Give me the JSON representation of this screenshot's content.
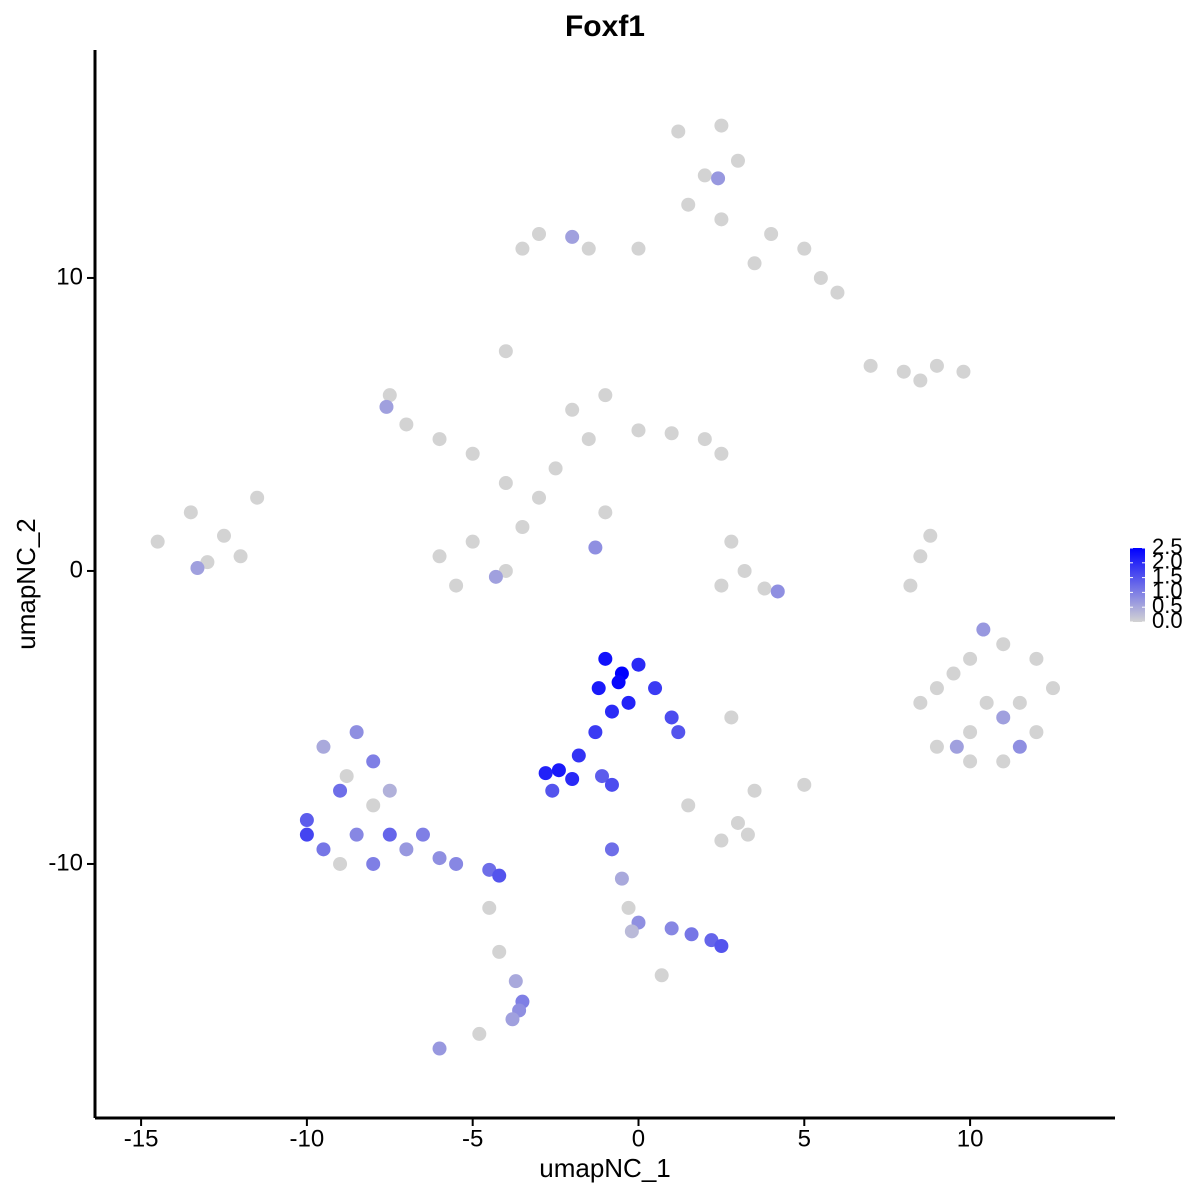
{
  "chart_data": {
    "type": "scatter",
    "title": "Foxf1",
    "x_label": "umapNC_1",
    "y_label": "umapNC_2",
    "xlim": [
      -16.39,
      14.37
    ],
    "ylim": [
      -18.67,
      17.78
    ],
    "xticks": [
      -15,
      -10,
      -5,
      0,
      5,
      10
    ],
    "yticks": [
      -10,
      0,
      10
    ],
    "color_low": "#d3d3d3",
    "color_high": "#0000ff",
    "clim": [
      0,
      2.5
    ],
    "colorbar_ticks": [
      {
        "value": 0,
        "label": "0.0"
      },
      {
        "value": 0.5,
        "label": "0.5"
      },
      {
        "value": 1,
        "label": "1.0"
      },
      {
        "value": 1.5,
        "label": "1.5"
      },
      {
        "value": 2,
        "label": "2.0"
      },
      {
        "value": 2.5,
        "label": "2.5"
      }
    ],
    "x": [
      1.2,
      2.5,
      3,
      2,
      1.5,
      2.5,
      4,
      5,
      5.5,
      3.5,
      -3,
      -1.5,
      0,
      -3.5,
      6,
      2.4,
      -2,
      7,
      8,
      9,
      9.8,
      8.5,
      -7.5,
      -7,
      -6,
      -5,
      -4,
      -4,
      -3,
      -5,
      -6,
      -5.5,
      -4,
      -3.5,
      -2,
      -1,
      -1.5,
      0,
      1,
      2,
      2.5,
      -2.5,
      -1,
      -1.3,
      -7.6,
      -4.3,
      -14.5,
      -13.5,
      -12.5,
      -12,
      -11.5,
      -13,
      -13.3,
      2.8,
      3.2,
      2.5,
      3.8,
      4.2,
      9,
      10,
      11,
      12,
      12.5,
      12,
      11,
      10,
      9,
      8.5,
      10.5,
      11.5,
      10,
      9.5,
      10.4,
      11,
      11.5,
      9.6,
      8.2,
      8.5,
      8.8,
      3,
      3.3,
      2.5,
      5,
      3.5,
      2.8,
      1.5,
      -1,
      -0.5,
      0,
      -1.2,
      -0.3,
      0.5,
      1,
      1.2,
      -0.8,
      -0.6,
      -1.3,
      -1.8,
      -2.4,
      -2.8,
      -2,
      -2.6,
      -1.1,
      -0.8,
      -9.5,
      -8.5,
      -8,
      -9,
      -10,
      -9.5,
      -8.5,
      -8,
      -7.5,
      -7,
      -6.5,
      -6,
      -5.5,
      -4.5,
      -4.2,
      -8.8,
      -7.5,
      -9,
      -10,
      -8,
      -4.5,
      -4.2,
      -3.7,
      -3.5,
      -3.6,
      -3.8,
      -6,
      -4.8,
      -0.8,
      -0.5,
      -0.3,
      0,
      1,
      1.6,
      2.2,
      2.5,
      0.7,
      -0.2
    ],
    "y": [
      15,
      15.2,
      14,
      13.5,
      12.5,
      12,
      11.5,
      11,
      10,
      10.5,
      11.5,
      11,
      11,
      11,
      9.5,
      13.4,
      11.4,
      7,
      6.8,
      7,
      6.8,
      6.5,
      6,
      5,
      4.5,
      4,
      7.5,
      3,
      2.5,
      1,
      0.5,
      -0.5,
      0,
      1.5,
      5.5,
      6,
      4.5,
      4.8,
      4.7,
      4.5,
      4,
      3.5,
      2,
      0.8,
      5.6,
      -0.2,
      1,
      2,
      1.2,
      0.5,
      2.5,
      0.3,
      0.1,
      1,
      0,
      -0.5,
      -0.6,
      -0.7,
      -4,
      -3,
      -2.5,
      -3,
      -4,
      -5.5,
      -6.5,
      -6.5,
      -6,
      -4.5,
      -4.5,
      -4.5,
      -5.5,
      -3.5,
      -2,
      -5,
      -6,
      -6,
      -0.5,
      0.5,
      1.2,
      -8.6,
      -9,
      -9.2,
      -7.3,
      -7.5,
      -5,
      -8,
      -3,
      -3.5,
      -3.2,
      -4,
      -4.5,
      -4,
      -5,
      -5.5,
      -4.8,
      -3.8,
      -5.5,
      -6.3,
      -6.8,
      -6.9,
      -7.1,
      -7.5,
      -7,
      -7.3,
      -6,
      -5.5,
      -6.5,
      -7.5,
      -8.5,
      -9.5,
      -9,
      -8,
      -9,
      -9.5,
      -9,
      -9.8,
      -10,
      -10.2,
      -10.4,
      -7,
      -7.5,
      -10,
      -9,
      -10,
      -11.5,
      -13,
      -14,
      -14.7,
      -15,
      -15.3,
      -16.3,
      -15.8,
      -9.5,
      -10.5,
      -11.5,
      -12,
      -12.2,
      -12.4,
      -12.6,
      -12.8,
      -13.8,
      -12.3
    ],
    "color_values": [
      0,
      0,
      0,
      0,
      0,
      0,
      0,
      0,
      0,
      0,
      0,
      0,
      0,
      0,
      0,
      0.7,
      0.6,
      0,
      0,
      0,
      0,
      0,
      0,
      0,
      0,
      0,
      0,
      0,
      0,
      0,
      0,
      0,
      0,
      0,
      0,
      0,
      0,
      0,
      0,
      0,
      0,
      0,
      0,
      0.8,
      0.6,
      0.6,
      0,
      0,
      0,
      0,
      0,
      0,
      0.6,
      0,
      0,
      0,
      0,
      0.8,
      0,
      0,
      0,
      0,
      0,
      0,
      0,
      0,
      0,
      0,
      0,
      0,
      0,
      0,
      0.7,
      0.6,
      0.8,
      0.6,
      0,
      0,
      0,
      0,
      0,
      0,
      0,
      0,
      0,
      0,
      2.3,
      2.5,
      2.0,
      2.2,
      2.1,
      1.8,
      1.6,
      1.5,
      2.0,
      2.4,
      1.8,
      1.9,
      2.2,
      2.1,
      2.0,
      1.5,
      1.4,
      1.6,
      0.5,
      0.8,
      1.0,
      1.2,
      1.4,
      1.1,
      0.9,
      0,
      1.3,
      0.7,
      1.0,
      0.8,
      0.9,
      1.2,
      1.5,
      0,
      0.4,
      0,
      1.7,
      1.0,
      0,
      0,
      0.5,
      1.0,
      0.8,
      0.6,
      0.7,
      0,
      1.2,
      0.5,
      0,
      0.8,
      0.9,
      1.1,
      1.3,
      1.5,
      0,
      0.3
    ]
  }
}
